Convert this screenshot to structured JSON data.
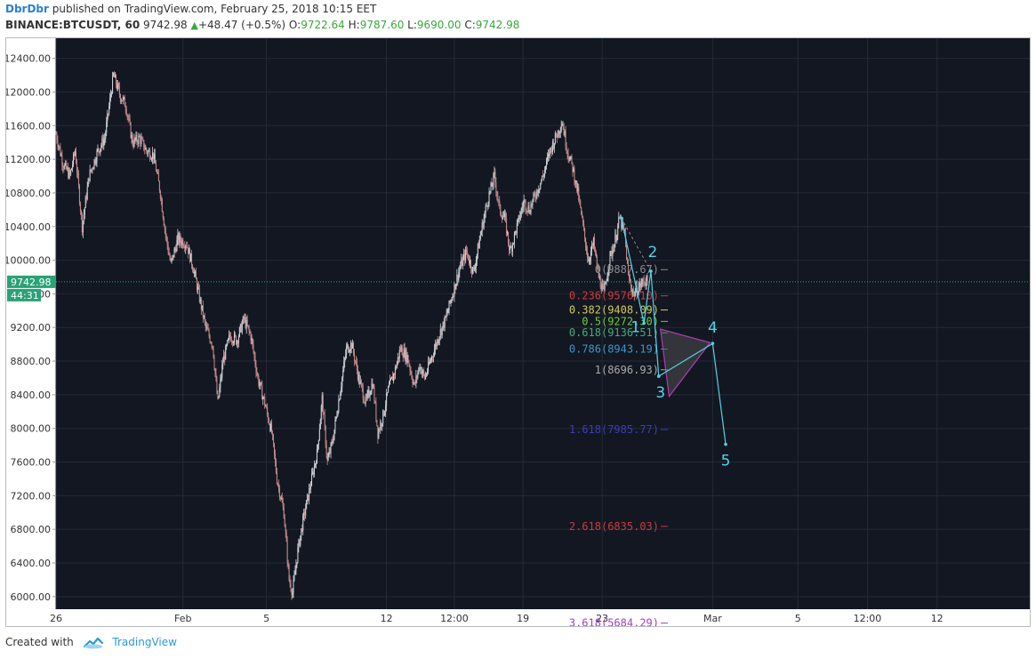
{
  "header": {
    "author": "DbrDbr",
    "published_text": "published on TradingView.com, February 25, 2018 10:15 EET",
    "symbol": "BINANCE:BTCUSDT, 60",
    "last": "9742.98",
    "change": "+48.47 (+0.5%)",
    "o_label": "O:",
    "o_value": "9722.64",
    "h_label": "H:",
    "h_value": "9787.60",
    "l_label": "L:",
    "l_value": "9690.00",
    "c_label": "C:",
    "c_value": "9742.98"
  },
  "footer": {
    "created_with": "Created with",
    "brand": "TradingView"
  },
  "chart_data": {
    "type": "candlestick",
    "symbol": "BINANCE:BTCUSDT",
    "interval": "60",
    "ylim": [
      5850,
      12650
    ],
    "y_ticks": [
      "12400.00",
      "12000.00",
      "11600.00",
      "11200.00",
      "10800.00",
      "10400.00",
      "10000.00",
      "9600.00",
      "9200.00",
      "8800.00",
      "8400.00",
      "8000.00",
      "7600.00",
      "7200.00",
      "6800.00",
      "6400.00",
      "6000.00"
    ],
    "x_ticks": [
      "26",
      "Feb",
      "5",
      "12",
      "12:00",
      "19",
      "23",
      "Mar",
      "5",
      "12:00",
      "12"
    ],
    "x_tick_bars": [
      0,
      146,
      242,
      380,
      458,
      537,
      628,
      755,
      853,
      933,
      1013
    ],
    "x_total_bars": 1090,
    "last_price": "9742.98",
    "countdown": "44:31",
    "price_path": [
      [
        0,
        11500
      ],
      [
        8,
        11150
      ],
      [
        16,
        11000
      ],
      [
        22,
        11300
      ],
      [
        30,
        10400
      ],
      [
        38,
        11000
      ],
      [
        48,
        11300
      ],
      [
        56,
        11450
      ],
      [
        66,
        12200
      ],
      [
        74,
        11950
      ],
      [
        80,
        11850
      ],
      [
        88,
        11400
      ],
      [
        96,
        11450
      ],
      [
        104,
        11300
      ],
      [
        112,
        11250
      ],
      [
        120,
        10800
      ],
      [
        126,
        10300
      ],
      [
        132,
        9950
      ],
      [
        140,
        10250
      ],
      [
        150,
        10200
      ],
      [
        158,
        9900
      ],
      [
        164,
        9600
      ],
      [
        172,
        9200
      ],
      [
        180,
        9000
      ],
      [
        186,
        8300
      ],
      [
        192,
        8800
      ],
      [
        200,
        9100
      ],
      [
        208,
        9050
      ],
      [
        216,
        9300
      ],
      [
        224,
        9100
      ],
      [
        232,
        8600
      ],
      [
        240,
        8300
      ],
      [
        248,
        7950
      ],
      [
        254,
        7400
      ],
      [
        262,
        7000
      ],
      [
        268,
        6200
      ],
      [
        272,
        6050
      ],
      [
        278,
        6550
      ],
      [
        284,
        6900
      ],
      [
        292,
        7300
      ],
      [
        300,
        7700
      ],
      [
        306,
        8350
      ],
      [
        312,
        7600
      ],
      [
        318,
        7850
      ],
      [
        326,
        8400
      ],
      [
        334,
        8950
      ],
      [
        340,
        9000
      ],
      [
        348,
        8600
      ],
      [
        356,
        8300
      ],
      [
        364,
        8550
      ],
      [
        370,
        7950
      ],
      [
        376,
        8150
      ],
      [
        382,
        8450
      ],
      [
        390,
        8700
      ],
      [
        396,
        8950
      ],
      [
        404,
        8850
      ],
      [
        412,
        8500
      ],
      [
        418,
        8750
      ],
      [
        424,
        8600
      ],
      [
        432,
        8850
      ],
      [
        440,
        9100
      ],
      [
        448,
        9300
      ],
      [
        456,
        9600
      ],
      [
        464,
        9900
      ],
      [
        472,
        10100
      ],
      [
        480,
        9850
      ],
      [
        488,
        10300
      ],
      [
        496,
        10700
      ],
      [
        504,
        11000
      ],
      [
        510,
        10600
      ],
      [
        516,
        10500
      ],
      [
        522,
        10100
      ],
      [
        530,
        10400
      ],
      [
        538,
        10700
      ],
      [
        544,
        10600
      ],
      [
        552,
        10800
      ],
      [
        560,
        11000
      ],
      [
        568,
        11300
      ],
      [
        576,
        11500
      ],
      [
        582,
        11650
      ],
      [
        588,
        11300
      ],
      [
        594,
        11100
      ],
      [
        600,
        10800
      ],
      [
        606,
        10400
      ],
      [
        612,
        10000
      ],
      [
        618,
        10200
      ],
      [
        624,
        9800
      ],
      [
        630,
        9600
      ],
      [
        636,
        10000
      ],
      [
        642,
        10200
      ],
      [
        648,
        10500
      ],
      [
        654,
        10300
      ],
      [
        658,
        9800
      ],
      [
        664,
        9600
      ],
      [
        672,
        9700
      ],
      [
        676,
        9760
      ],
      [
        680,
        9742.98
      ]
    ],
    "fib_levels": [
      {
        "label": "0(9887.67)",
        "value": 9887.67,
        "color": "#8c8c8c"
      },
      {
        "label": "0.236(9576.10)",
        "value": 9576.1,
        "color": "#c83c3c"
      },
      {
        "label": "0.382(9408.09)",
        "value": 9408.09,
        "color": "#d2c85a"
      },
      {
        "label": "0.5(9272.30)",
        "value": 9272.3,
        "color": "#6ec83c"
      },
      {
        "label": "0.618(9136.51)",
        "value": 9136.51,
        "color": "#46aa78"
      },
      {
        "label": "0.786(8943.19)",
        "value": 8943.19,
        "color": "#3c96c8"
      },
      {
        "label": "1(8696.93)",
        "value": 8696.93,
        "color": "#aaaaaa"
      },
      {
        "label": "1.618(7985.77)",
        "value": 7985.77,
        "color": "#3c3cb4"
      },
      {
        "label": "2.618(6835.03)",
        "value": 6835.03,
        "color": "#c83c3c"
      },
      {
        "label": "3.618(5684.29)",
        "value": 5684.29,
        "color": "#a03cc8"
      }
    ],
    "wave_points": [
      {
        "label": "",
        "bar": 650,
        "price": 10500
      },
      {
        "label": "1",
        "bar": 676,
        "price": 9250
      },
      {
        "label": "2",
        "bar": 684,
        "price": 9870
      },
      {
        "label": "3",
        "bar": 693,
        "price": 8620
      },
      {
        "label": "4",
        "bar": 755,
        "price": 9010
      },
      {
        "label": "5",
        "bar": 770,
        "price": 7810
      }
    ],
    "triangle": [
      {
        "bar": 695,
        "price": 9180
      },
      {
        "bar": 705,
        "price": 8380
      },
      {
        "bar": 752,
        "price": 9020
      }
    ],
    "colors": {
      "background": "#131722",
      "grid": "#252a36",
      "axis_text": "#333333",
      "up": "#d0d6da",
      "down": "#c98d8e",
      "wave": "#4fd4e8",
      "triangle": "#b33bb3",
      "last_label": "#2aa176"
    }
  }
}
